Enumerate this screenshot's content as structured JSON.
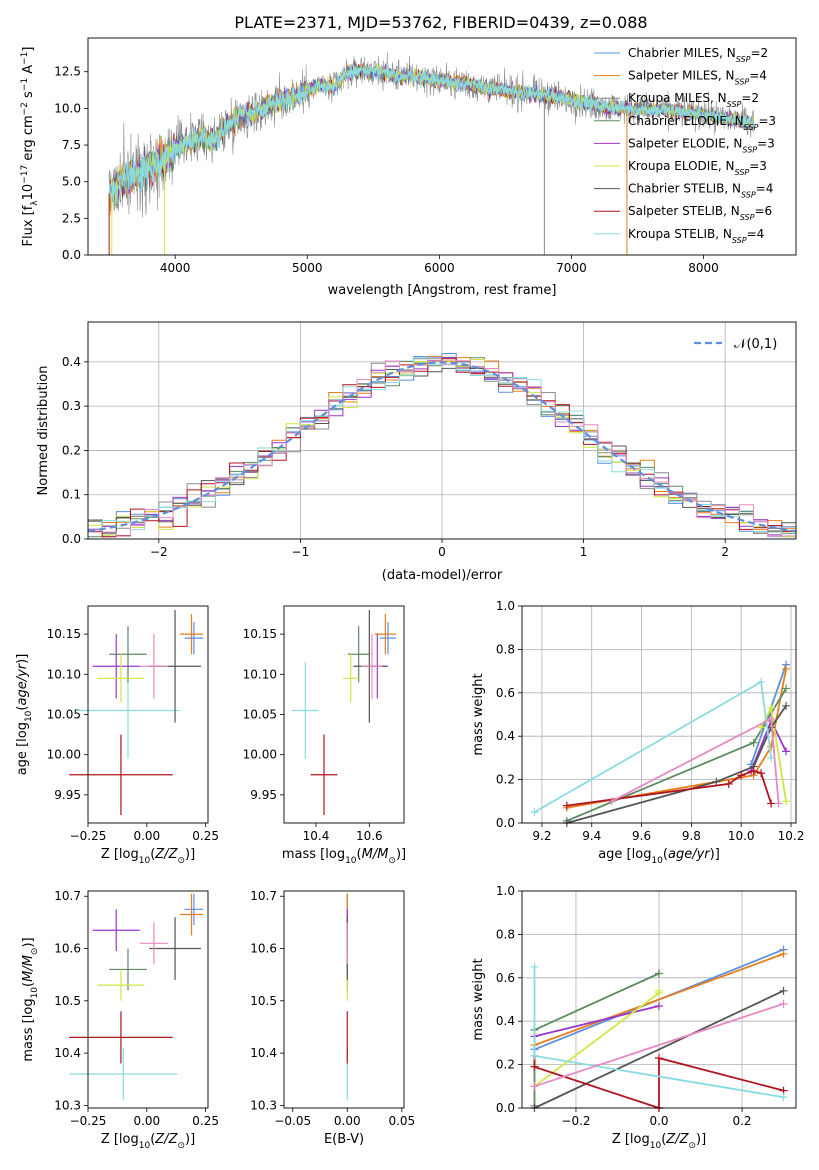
{
  "title": "PLATE=2371, MJD=53762, FIBERID=0439, z=0.088",
  "colors": {
    "Chabrier MILES": "#5c8fe0",
    "Salpeter MILES": "#e87e1c",
    "Kroupa MILES": "#8a8a8a",
    "Chabrier ELODIE": "#5f8a60",
    "Salpeter ELODIE": "#9b36c8",
    "Kroupa ELODIE": "#cfe645",
    "Chabrier STELIB": "#555555",
    "Salpeter STELIB": "#b0141c",
    "Kroupa STELIB": "#8adbe0",
    "Kroupa ELODIE (pink)": "#e48ac4"
  },
  "chart_data": [
    {
      "id": "spectrum",
      "type": "line",
      "xlabel": "wavelength [Angstrom, rest frame]",
      "ylabel": "Flux [f_λ10^-17 erg cm^-2 s^-1 A^-1]",
      "xlim": [
        3340,
        8700
      ],
      "ylim": [
        0,
        14.8
      ],
      "xticks": [
        4000,
        5000,
        6000,
        7000,
        8000
      ],
      "yticks": [
        0.0,
        2.5,
        5.0,
        7.5,
        10.0,
        12.5
      ],
      "legend_position": "top-right",
      "envelope": [
        {
          "x": 3500,
          "y": 4.2
        },
        {
          "x": 3600,
          "y": 5.0
        },
        {
          "x": 3700,
          "y": 5.5
        },
        {
          "x": 3800,
          "y": 6.0
        },
        {
          "x": 3900,
          "y": 6.4
        },
        {
          "x": 4000,
          "y": 7.2
        },
        {
          "x": 4100,
          "y": 7.8
        },
        {
          "x": 4200,
          "y": 8.0
        },
        {
          "x": 4300,
          "y": 7.9
        },
        {
          "x": 4400,
          "y": 8.9
        },
        {
          "x": 4500,
          "y": 9.5
        },
        {
          "x": 4600,
          "y": 9.7
        },
        {
          "x": 4700,
          "y": 10.2
        },
        {
          "x": 4800,
          "y": 10.5
        },
        {
          "x": 4900,
          "y": 10.9
        },
        {
          "x": 5000,
          "y": 11.2
        },
        {
          "x": 5100,
          "y": 11.6
        },
        {
          "x": 5200,
          "y": 11.4
        },
        {
          "x": 5300,
          "y": 12.4
        },
        {
          "x": 5400,
          "y": 12.6
        },
        {
          "x": 5500,
          "y": 12.5
        },
        {
          "x": 5600,
          "y": 12.4
        },
        {
          "x": 5700,
          "y": 12.2
        },
        {
          "x": 5800,
          "y": 12.2
        },
        {
          "x": 5900,
          "y": 12.1
        },
        {
          "x": 6000,
          "y": 11.9
        },
        {
          "x": 6200,
          "y": 11.7
        },
        {
          "x": 6400,
          "y": 11.3
        },
        {
          "x": 6600,
          "y": 11.1
        },
        {
          "x": 6800,
          "y": 10.9
        },
        {
          "x": 7000,
          "y": 10.6
        },
        {
          "x": 7200,
          "y": 10.2
        },
        {
          "x": 7400,
          "y": 10.0
        },
        {
          "x": 7600,
          "y": 9.9
        },
        {
          "x": 7800,
          "y": 9.8
        },
        {
          "x": 8000,
          "y": 9.6
        },
        {
          "x": 8200,
          "y": 9.3
        },
        {
          "x": 8380,
          "y": 9.0
        }
      ],
      "series": [
        {
          "name": "Chabrier MILES, N_SSP=2"
        },
        {
          "name": "Salpeter MILES, N_SSP=4"
        },
        {
          "name": "Kroupa MILES, N_SSP=2"
        },
        {
          "name": "Chabrier ELODIE, N_SSP=3"
        },
        {
          "name": "Salpeter ELODIE, N_SSP=3"
        },
        {
          "name": "Kroupa ELODIE, N_SSP=3"
        },
        {
          "name": "Chabrier STELIB, N_SSP=4"
        },
        {
          "name": "Salpeter STELIB, N_SSP=6"
        },
        {
          "name": "Kroupa STELIB, N_SSP=4"
        }
      ],
      "legend": [
        {
          "prefix": "Chabrier MILES, N",
          "sub": "SSP",
          "suffix": "=2",
          "color_key": "Chabrier MILES"
        },
        {
          "prefix": "Salpeter MILES, N",
          "sub": "SSP",
          "suffix": "=4",
          "color_key": "Salpeter MILES"
        },
        {
          "prefix": "Kroupa MILES, N",
          "sub": "SSP",
          "suffix": "=2",
          "color_key": "Kroupa MILES"
        },
        {
          "prefix": "Chabrier ELODIE, N",
          "sub": "SSP",
          "suffix": "=3",
          "color_key": "Chabrier ELODIE"
        },
        {
          "prefix": "Salpeter ELODIE, N",
          "sub": "SSP",
          "suffix": "=3",
          "color_key": "Salpeter ELODIE"
        },
        {
          "prefix": "Kroupa ELODIE, N",
          "sub": "SSP",
          "suffix": "=3",
          "color_key": "Kroupa ELODIE"
        },
        {
          "prefix": "Chabrier STELIB, N",
          "sub": "SSP",
          "suffix": "=4",
          "color_key": "Chabrier STELIB"
        },
        {
          "prefix": "Salpeter STELIB, N",
          "sub": "SSP",
          "suffix": "=6",
          "color_key": "Salpeter STELIB"
        },
        {
          "prefix": "Kroupa STELIB, N",
          "sub": "SSP",
          "suffix": "=4",
          "color_key": "Kroupa STELIB"
        }
      ]
    },
    {
      "id": "residuals",
      "type": "line",
      "xlabel": "(data-model)/error",
      "ylabel": "Normed distribution",
      "xlim": [
        -2.5,
        2.5
      ],
      "ylim": [
        0,
        0.49
      ],
      "xticks": [
        -2,
        -1,
        0,
        1,
        2
      ],
      "yticks": [
        0.0,
        0.1,
        0.2,
        0.3,
        0.4
      ],
      "grid": true,
      "legend_position": "top-right",
      "series": [
        {
          "name": "𝒩(0,1)",
          "style": "dashed",
          "color": "#5c8fe0",
          "function": "gaussian",
          "mu": 0,
          "sigma": 1
        }
      ],
      "histogram_colors": [
        "Chabrier MILES",
        "Salpeter MILES",
        "Kroupa MILES",
        "Chabrier ELODIE",
        "Salpeter ELODIE",
        "Kroupa ELODIE",
        "Chabrier STELIB",
        "Salpeter STELIB",
        "Kroupa STELIB",
        "Kroupa ELODIE (pink)"
      ]
    },
    {
      "id": "age_vs_Z",
      "type": "scatter",
      "xlabel": "Z [log10(Z/Z☉)]",
      "ylabel": "age  [log10(age/yr)]",
      "xlim": [
        -0.25,
        0.26
      ],
      "ylim": [
        9.915,
        10.185
      ],
      "xticks": [
        -0.25,
        0.0,
        0.25
      ],
      "yticks": [
        9.95,
        10.0,
        10.05,
        10.1,
        10.15
      ],
      "points": [
        {
          "color": "Chabrier MILES",
          "x": 0.2,
          "xerr": 0.04,
          "y": 10.145,
          "yerr": 0.02
        },
        {
          "color": "Salpeter MILES",
          "x": 0.19,
          "xerr": 0.05,
          "y": 10.15,
          "yerr": 0.025
        },
        {
          "color": "Kroupa STELIB",
          "x": -0.08,
          "xerr": 0.22,
          "y": 10.055,
          "yerr": 0.06
        },
        {
          "color": "Chabrier ELODIE",
          "x": -0.08,
          "xerr": 0.08,
          "y": 10.125,
          "yerr": 0.035
        },
        {
          "color": "Salpeter ELODIE",
          "x": -0.13,
          "xerr": 0.1,
          "y": 10.11,
          "yerr": 0.04
        },
        {
          "color": "Kroupa ELODIE",
          "x": -0.11,
          "xerr": 0.1,
          "y": 10.095,
          "yerr": 0.03
        },
        {
          "color": "Chabrier STELIB",
          "x": 0.12,
          "xerr": 0.11,
          "y": 10.11,
          "yerr": 0.07
        },
        {
          "color": "Salpeter STELIB",
          "x": -0.11,
          "xerr": 0.22,
          "y": 9.975,
          "yerr": 0.05
        },
        {
          "color": "Kroupa ELODIE (pink)",
          "x": 0.03,
          "xerr": 0.06,
          "y": 10.11,
          "yerr": 0.04
        }
      ]
    },
    {
      "id": "age_vs_mass",
      "type": "scatter",
      "xlabel": "mass [log10(M/M☉)]",
      "ylabel": "",
      "xlim": [
        10.28,
        10.73
      ],
      "ylim": [
        9.915,
        10.185
      ],
      "xticks": [
        10.4,
        10.6
      ],
      "yticks": [
        9.95,
        10.0,
        10.05,
        10.1,
        10.15
      ],
      "points": [
        {
          "color": "Chabrier MILES",
          "x": 10.67,
          "xerr": 0.03,
          "y": 10.145,
          "yerr": 0.02
        },
        {
          "color": "Salpeter MILES",
          "x": 10.66,
          "xerr": 0.04,
          "y": 10.15,
          "yerr": 0.025
        },
        {
          "color": "Kroupa STELIB",
          "x": 10.36,
          "xerr": 0.05,
          "y": 10.055,
          "yerr": 0.06
        },
        {
          "color": "Chabrier ELODIE",
          "x": 10.56,
          "xerr": 0.04,
          "y": 10.125,
          "yerr": 0.035
        },
        {
          "color": "Salpeter ELODIE",
          "x": 10.63,
          "xerr": 0.04,
          "y": 10.11,
          "yerr": 0.04
        },
        {
          "color": "Kroupa ELODIE",
          "x": 10.53,
          "xerr": 0.03,
          "y": 10.095,
          "yerr": 0.03
        },
        {
          "color": "Chabrier STELIB",
          "x": 10.6,
          "xerr": 0.06,
          "y": 10.11,
          "yerr": 0.07
        },
        {
          "color": "Salpeter STELIB",
          "x": 10.43,
          "xerr": 0.05,
          "y": 9.975,
          "yerr": 0.05
        },
        {
          "color": "Kroupa ELODIE (pink)",
          "x": 10.61,
          "xerr": 0.04,
          "y": 10.11,
          "yerr": 0.04
        }
      ]
    },
    {
      "id": "massweight_vs_age",
      "type": "line",
      "xlabel": "age  [log10(age/yr)]",
      "ylabel": "mass weight",
      "xlim": [
        9.12,
        10.22
      ],
      "ylim": [
        0,
        1.0
      ],
      "xticks": [
        9.2,
        9.4,
        9.6,
        9.8,
        10.0,
        10.2
      ],
      "yticks": [
        0.0,
        0.2,
        0.4,
        0.6,
        0.8,
        1.0
      ],
      "grid": true,
      "series": [
        {
          "color": "Chabrier MILES",
          "x": [
            10.04,
            10.18
          ],
          "y": [
            0.27,
            0.73
          ]
        },
        {
          "color": "Salpeter MILES",
          "x": [
            9.3,
            10.05,
            10.12,
            10.18
          ],
          "y": [
            0.07,
            0.22,
            0.35,
            0.71
          ]
        },
        {
          "color": "Chabrier ELODIE",
          "x": [
            9.3,
            10.05,
            10.18
          ],
          "y": [
            0.01,
            0.37,
            0.62
          ]
        },
        {
          "color": "Salpeter ELODIE",
          "x": [
            10.04,
            10.12,
            10.18
          ],
          "y": [
            0.24,
            0.47,
            0.33
          ]
        },
        {
          "color": "Kroupa ELODIE",
          "x": [
            10.08,
            10.12,
            10.18
          ],
          "y": [
            0.44,
            0.53,
            0.1
          ]
        },
        {
          "color": "Chabrier STELIB",
          "x": [
            9.3,
            9.9,
            10.05,
            10.12,
            10.18
          ],
          "y": [
            0.0,
            0.19,
            0.26,
            0.44,
            0.54
          ]
        },
        {
          "color": "Salpeter STELIB",
          "x": [
            9.3,
            9.95,
            10.0,
            10.05,
            10.08,
            10.12
          ],
          "y": [
            0.08,
            0.18,
            0.22,
            0.24,
            0.23,
            0.09
          ]
        },
        {
          "color": "Kroupa STELIB",
          "x": [
            9.17,
            10.08,
            10.12
          ],
          "y": [
            0.05,
            0.65,
            0.3
          ]
        },
        {
          "color": "Kroupa ELODIE (pink)",
          "x": [
            9.48,
            10.12,
            10.15
          ],
          "y": [
            0.1,
            0.48,
            0.09
          ]
        }
      ]
    },
    {
      "id": "mass_vs_Z",
      "type": "scatter",
      "xlabel": "Z [log10(Z/Z☉)]",
      "ylabel": "mass [log10(M/M☉)]",
      "xlim": [
        -0.25,
        0.26
      ],
      "ylim": [
        10.295,
        10.71
      ],
      "xticks": [
        -0.25,
        0.0,
        0.25
      ],
      "yticks": [
        10.3,
        10.4,
        10.5,
        10.6,
        10.7
      ],
      "points": [
        {
          "color": "Chabrier MILES",
          "x": 0.2,
          "xerr": 0.04,
          "y": 10.675,
          "yerr": 0.03
        },
        {
          "color": "Salpeter MILES",
          "x": 0.19,
          "xerr": 0.05,
          "y": 10.665,
          "yerr": 0.04
        },
        {
          "color": "Kroupa STELIB",
          "x": -0.1,
          "xerr": 0.23,
          "y": 10.36,
          "yerr": 0.05
        },
        {
          "color": "Chabrier ELODIE",
          "x": -0.08,
          "xerr": 0.08,
          "y": 10.56,
          "yerr": 0.04
        },
        {
          "color": "Salpeter ELODIE",
          "x": -0.13,
          "xerr": 0.1,
          "y": 10.635,
          "yerr": 0.04
        },
        {
          "color": "Kroupa ELODIE",
          "x": -0.11,
          "xerr": 0.1,
          "y": 10.53,
          "yerr": 0.03
        },
        {
          "color": "Chabrier STELIB",
          "x": 0.12,
          "xerr": 0.11,
          "y": 10.6,
          "yerr": 0.06
        },
        {
          "color": "Salpeter STELIB",
          "x": -0.11,
          "xerr": 0.22,
          "y": 10.43,
          "yerr": 0.05
        },
        {
          "color": "Kroupa ELODIE (pink)",
          "x": 0.03,
          "xerr": 0.06,
          "y": 10.61,
          "yerr": 0.04
        }
      ]
    },
    {
      "id": "mass_vs_ebv",
      "type": "scatter",
      "xlabel": "E(B-V)",
      "ylabel": "",
      "xlim": [
        -0.058,
        0.052
      ],
      "ylim": [
        10.295,
        10.71
      ],
      "xticks": [
        -0.05,
        0.0,
        0.05
      ],
      "yticks": [
        10.3,
        10.4,
        10.5,
        10.6,
        10.7
      ],
      "points": [
        {
          "color": "Chabrier MILES",
          "x": 0.0,
          "xerr": 0.0,
          "y": 10.675,
          "yerr": 0.03
        },
        {
          "color": "Salpeter MILES",
          "x": 0.0,
          "xerr": 0.0,
          "y": 10.665,
          "yerr": 0.04
        },
        {
          "color": "Kroupa STELIB",
          "x": 0.0,
          "xerr": 0.0,
          "y": 10.36,
          "yerr": 0.05
        },
        {
          "color": "Chabrier ELODIE",
          "x": 0.0,
          "xerr": 0.0,
          "y": 10.56,
          "yerr": 0.04
        },
        {
          "color": "Salpeter ELODIE",
          "x": 0.0,
          "xerr": 0.0,
          "y": 10.635,
          "yerr": 0.04
        },
        {
          "color": "Kroupa ELODIE",
          "x": 0.0,
          "xerr": 0.0,
          "y": 10.53,
          "yerr": 0.03
        },
        {
          "color": "Chabrier STELIB",
          "x": 0.0,
          "xerr": 0.0,
          "y": 10.6,
          "yerr": 0.06
        },
        {
          "color": "Salpeter STELIB",
          "x": 0.0,
          "xerr": 0.0,
          "y": 10.43,
          "yerr": 0.05
        },
        {
          "color": "Kroupa ELODIE (pink)",
          "x": 0.0,
          "xerr": 0.0,
          "y": 10.61,
          "yerr": 0.04
        }
      ]
    },
    {
      "id": "massweight_vs_Z",
      "type": "line",
      "xlabel": "Z [log10(Z/Z☉)]",
      "ylabel": "mass weight",
      "xlim": [
        -0.33,
        0.33
      ],
      "ylim": [
        0,
        1.0
      ],
      "xticks": [
        -0.2,
        0.0,
        0.2
      ],
      "yticks": [
        0.0,
        0.2,
        0.4,
        0.6,
        0.8,
        1.0
      ],
      "grid": true,
      "series": [
        {
          "color": "Chabrier MILES",
          "x": [
            -0.3,
            0.3
          ],
          "y": [
            0.27,
            0.73
          ]
        },
        {
          "color": "Salpeter MILES",
          "x": [
            -0.3,
            0.3
          ],
          "y": [
            0.29,
            0.71
          ]
        },
        {
          "color": "Chabrier ELODIE",
          "x": [
            -0.3,
            -0.3,
            0.0,
            0.0
          ],
          "y": [
            0.01,
            0.36,
            0.62,
            0.62
          ]
        },
        {
          "color": "Salpeter ELODIE",
          "x": [
            -0.3,
            0.0
          ],
          "y": [
            0.33,
            0.47
          ]
        },
        {
          "color": "Kroupa ELODIE",
          "x": [
            -0.3,
            0.0,
            0.0
          ],
          "y": [
            0.1,
            0.53,
            0.54
          ]
        },
        {
          "color": "Chabrier STELIB",
          "x": [
            -0.3,
            0.3
          ],
          "y": [
            0.0,
            0.54
          ]
        },
        {
          "color": "Salpeter STELIB",
          "x": [
            -0.3,
            -0.3,
            0.0,
            0.0,
            0.0,
            0.3
          ],
          "y": [
            0.24,
            0.19,
            0.0,
            0.0,
            0.23,
            0.08
          ]
        },
        {
          "color": "Kroupa STELIB",
          "x": [
            -0.3,
            -0.3,
            0.3
          ],
          "y": [
            0.65,
            0.24,
            0.05
          ]
        },
        {
          "color": "Kroupa ELODIE (pink)",
          "x": [
            -0.3,
            0.3
          ],
          "y": [
            0.1,
            0.48
          ]
        }
      ]
    }
  ]
}
